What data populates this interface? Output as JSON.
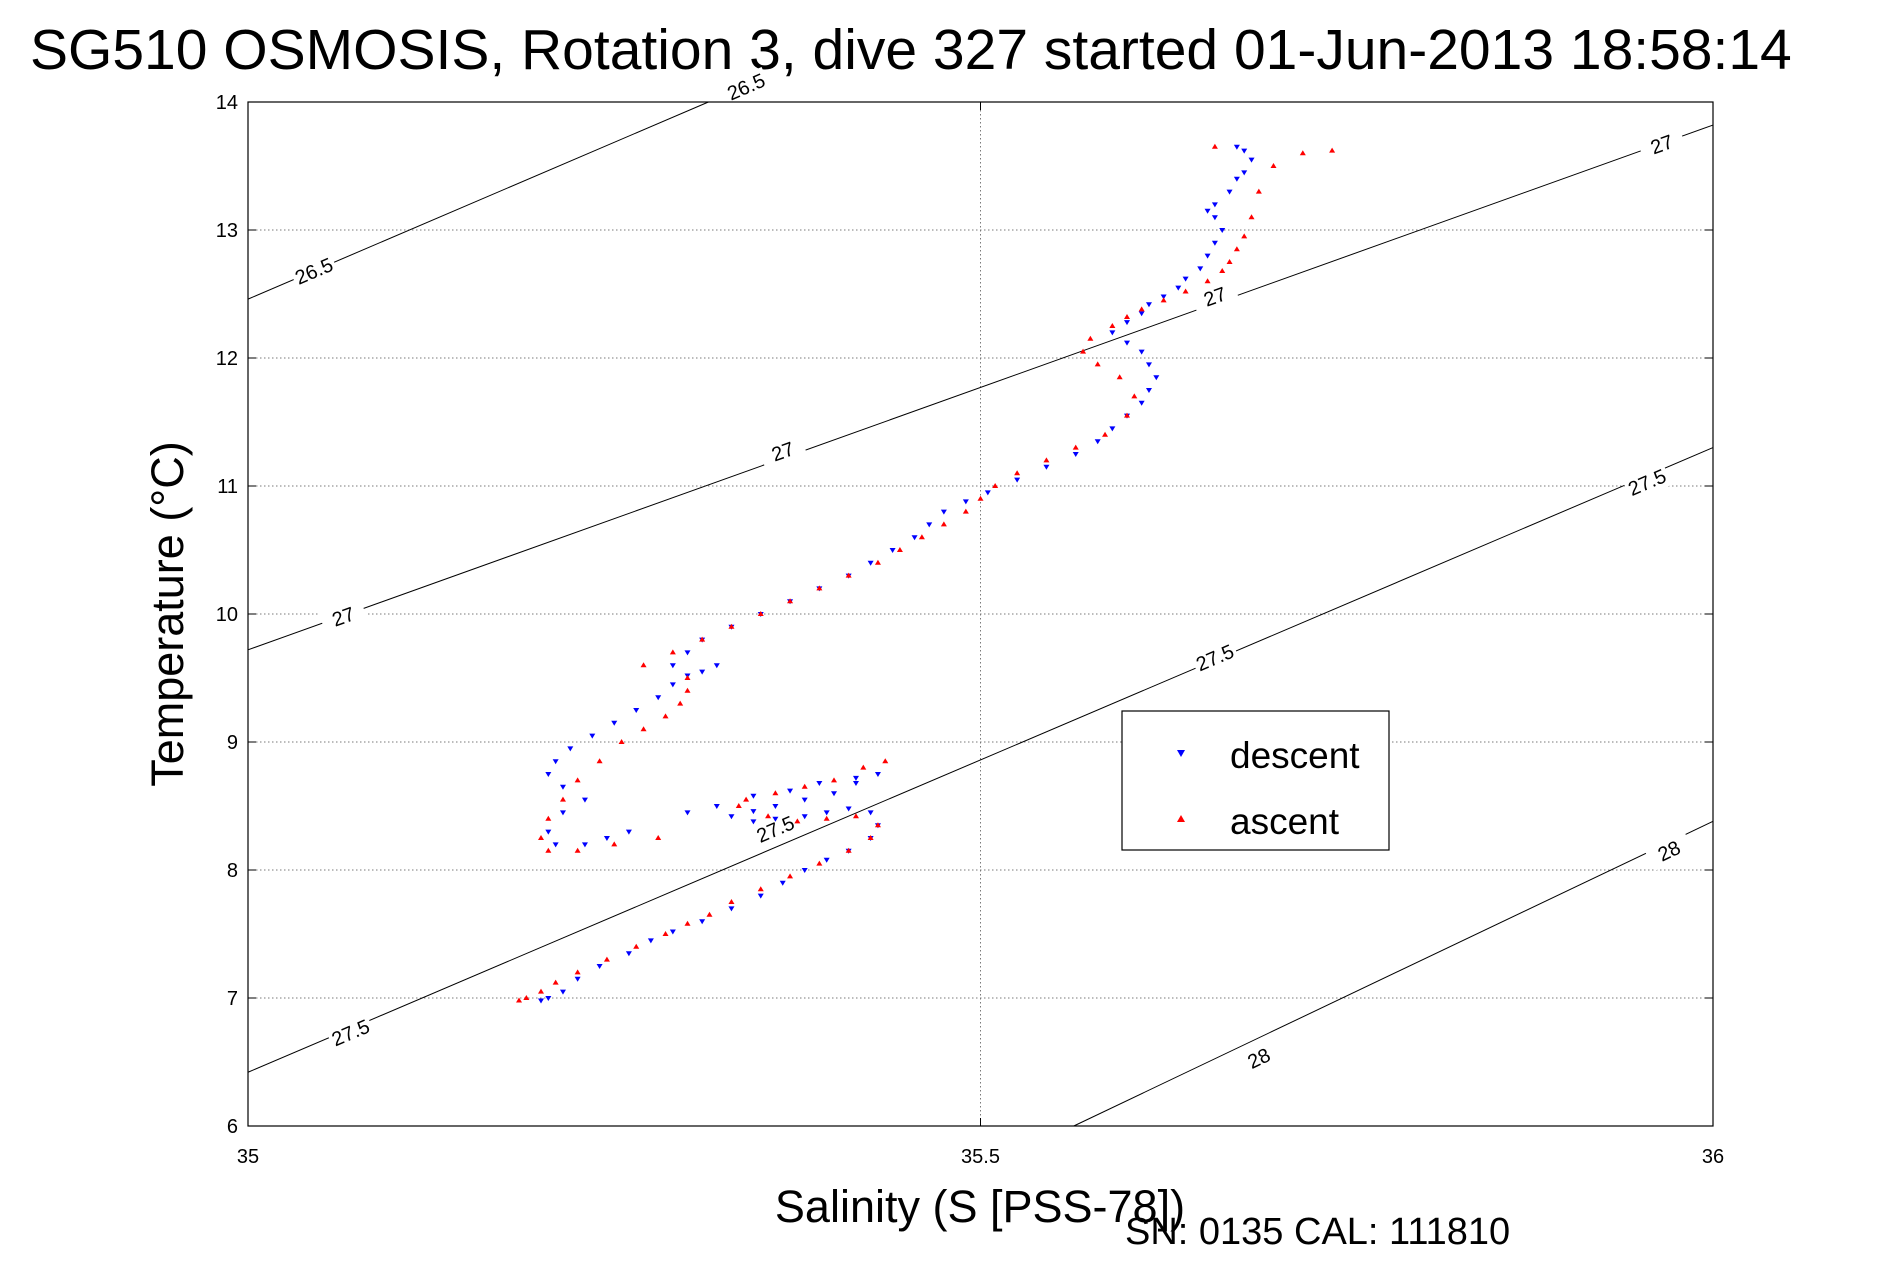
{
  "chart_data": {
    "type": "scatter",
    "title": "SG510 OSMOSIS, Rotation 3, dive 327 started 01-Jun-2013 18:58:14",
    "xlabel": "Salinity (S [PSS-78])",
    "ylabel": "Temperature (°C)",
    "xlim": [
      35,
      36
    ],
    "ylim": [
      6,
      14
    ],
    "xticks": [
      35,
      35.5,
      36
    ],
    "yticks": [
      6,
      7,
      8,
      9,
      10,
      11,
      12,
      13,
      14
    ],
    "xtick_labels": [
      "35",
      "35.5",
      "36"
    ],
    "ytick_labels": [
      "6",
      "7",
      "8",
      "9",
      "10",
      "11",
      "12",
      "13",
      "14"
    ],
    "grid": true,
    "legend_position": "right-center",
    "footer": "SN: 0135  CAL: 111810",
    "density_contours": [
      {
        "label": "26.5",
        "points": [
          [
            35,
            12.46
          ],
          [
            35.4,
            14.42
          ]
        ],
        "label_positions": [
          [
            35.045,
            12.68
          ],
          [
            35.34,
            14.12
          ]
        ]
      },
      {
        "label": "27",
        "points": [
          [
            35,
            9.72
          ],
          [
            36,
            13.82
          ]
        ],
        "label_positions": [
          [
            35.065,
            9.98
          ],
          [
            35.365,
            11.27
          ],
          [
            35.66,
            12.48
          ],
          [
            35.965,
            13.67
          ]
        ]
      },
      {
        "label": "27.5",
        "points": [
          [
            35,
            6.42
          ],
          [
            36,
            11.3
          ]
        ],
        "label_positions": [
          [
            35.07,
            6.73
          ],
          [
            35.36,
            8.32
          ],
          [
            35.66,
            9.66
          ],
          [
            35.955,
            11.03
          ]
        ]
      },
      {
        "label": "28",
        "points": [
          [
            35.56,
            5.98
          ],
          [
            36,
            8.38
          ]
        ],
        "label_positions": [
          [
            35.69,
            6.53
          ],
          [
            35.97,
            8.15
          ]
        ]
      }
    ],
    "series": [
      {
        "name": "descent",
        "color": "#0000ff",
        "marker": "triangle-down",
        "x": [
          35.2,
          35.205,
          35.215,
          35.225,
          35.24,
          35.26,
          35.275,
          35.29,
          35.31,
          35.33,
          35.35,
          35.365,
          35.38,
          35.395,
          35.41,
          35.425,
          35.43,
          35.425,
          35.41,
          35.395,
          35.38,
          35.36,
          35.345,
          35.33,
          35.345,
          35.36,
          35.38,
          35.4,
          35.415,
          35.43,
          35.415,
          35.39,
          35.37,
          35.345,
          35.32,
          35.3,
          35.26,
          35.245,
          35.23,
          35.21,
          35.205,
          35.215,
          35.23,
          35.215,
          35.205,
          35.21,
          35.22,
          35.235,
          35.25,
          35.265,
          35.28,
          35.29,
          35.3,
          35.31,
          35.32,
          35.29,
          35.3,
          35.31,
          35.33,
          35.35,
          35.37,
          35.39,
          35.41,
          35.425,
          35.44,
          35.455,
          35.465,
          35.475,
          35.49,
          35.505,
          35.525,
          35.545,
          35.565,
          35.58,
          35.59,
          35.6,
          35.61,
          35.615,
          35.62,
          35.615,
          35.61,
          35.6,
          35.59,
          35.6,
          35.61,
          35.615,
          35.625,
          35.635,
          35.64,
          35.65,
          35.655,
          35.66,
          35.665,
          35.66,
          35.655,
          35.66,
          35.67,
          35.675,
          35.68,
          35.685,
          35.68,
          35.675
        ],
        "y": [
          6.98,
          7.0,
          7.05,
          7.15,
          7.25,
          7.35,
          7.45,
          7.52,
          7.6,
          7.7,
          7.8,
          7.9,
          8.0,
          8.08,
          8.15,
          8.25,
          8.35,
          8.45,
          8.48,
          8.45,
          8.42,
          8.4,
          8.38,
          8.42,
          8.46,
          8.5,
          8.55,
          8.6,
          8.68,
          8.75,
          8.72,
          8.68,
          8.62,
          8.58,
          8.5,
          8.45,
          8.3,
          8.25,
          8.2,
          8.2,
          8.3,
          8.45,
          8.55,
          8.65,
          8.75,
          8.85,
          8.95,
          9.05,
          9.15,
          9.25,
          9.35,
          9.45,
          9.52,
          9.55,
          9.6,
          9.6,
          9.7,
          9.8,
          9.9,
          10.0,
          10.1,
          10.2,
          10.3,
          10.4,
          10.5,
          10.6,
          10.7,
          10.8,
          10.88,
          10.95,
          11.05,
          11.15,
          11.25,
          11.35,
          11.45,
          11.55,
          11.65,
          11.75,
          11.85,
          11.95,
          12.05,
          12.12,
          12.2,
          12.28,
          12.35,
          12.42,
          12.48,
          12.55,
          12.62,
          12.7,
          12.8,
          12.9,
          13.0,
          13.1,
          13.15,
          13.2,
          13.3,
          13.4,
          13.45,
          13.55,
          13.62,
          13.65
        ]
      },
      {
        "name": "ascent",
        "color": "#ff0000",
        "marker": "triangle-up",
        "x": [
          35.185,
          35.19,
          35.2,
          35.21,
          35.225,
          35.245,
          35.265,
          35.285,
          35.3,
          35.315,
          35.33,
          35.35,
          35.37,
          35.39,
          35.41,
          35.425,
          35.43,
          35.415,
          35.395,
          35.375,
          35.355,
          35.335,
          35.34,
          35.36,
          35.38,
          35.4,
          35.42,
          35.435,
          35.28,
          35.25,
          35.225,
          35.205,
          35.2,
          35.205,
          35.215,
          35.225,
          35.24,
          35.255,
          35.27,
          35.285,
          35.295,
          35.3,
          35.3,
          35.27,
          35.29,
          35.31,
          35.33,
          35.35,
          35.37,
          35.39,
          35.41,
          35.43,
          35.445,
          35.46,
          35.475,
          35.49,
          35.5,
          35.51,
          35.525,
          35.545,
          35.565,
          35.585,
          35.6,
          35.605,
          35.595,
          35.58,
          35.57,
          35.575,
          35.59,
          35.6,
          35.61,
          35.625,
          35.64,
          35.655,
          35.665,
          35.67,
          35.675,
          35.68,
          35.685,
          35.69,
          35.7,
          35.72,
          35.74,
          35.66
        ],
        "y": [
          6.98,
          7.0,
          7.05,
          7.12,
          7.2,
          7.3,
          7.4,
          7.5,
          7.58,
          7.65,
          7.75,
          7.85,
          7.95,
          8.05,
          8.15,
          8.25,
          8.35,
          8.42,
          8.4,
          8.38,
          8.42,
          8.5,
          8.55,
          8.6,
          8.65,
          8.7,
          8.8,
          8.85,
          8.25,
          8.2,
          8.15,
          8.15,
          8.25,
          8.4,
          8.55,
          8.7,
          8.85,
          9.0,
          9.1,
          9.2,
          9.3,
          9.4,
          9.5,
          9.6,
          9.7,
          9.8,
          9.9,
          10.0,
          10.1,
          10.2,
          10.3,
          10.4,
          10.5,
          10.6,
          10.7,
          10.8,
          10.9,
          11.0,
          11.1,
          11.2,
          11.3,
          11.4,
          11.55,
          11.7,
          11.85,
          11.95,
          12.05,
          12.15,
          12.25,
          12.32,
          12.38,
          12.45,
          12.52,
          12.6,
          12.68,
          12.75,
          12.85,
          12.95,
          13.1,
          13.3,
          13.5,
          13.6,
          13.62,
          13.65
        ]
      }
    ]
  }
}
